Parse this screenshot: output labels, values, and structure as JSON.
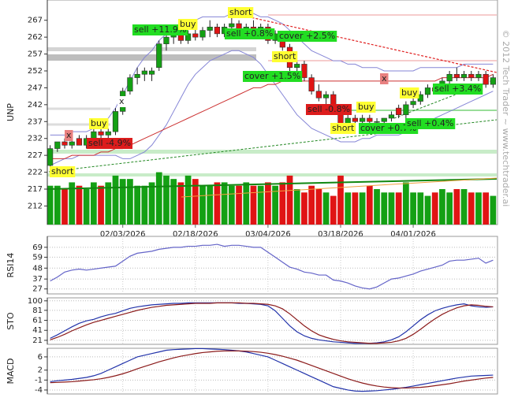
{
  "chart_data": [
    {
      "type": "candlestick",
      "y_label": "UNP",
      "categories": [
        null,
        null,
        null,
        null,
        null,
        null,
        null,
        null,
        null,
        null,
        "02/03/2026",
        null,
        null,
        null,
        null,
        null,
        null,
        null,
        null,
        null,
        "02/18/2026",
        null,
        null,
        null,
        null,
        null,
        null,
        null,
        null,
        null,
        "03/04/2026",
        null,
        null,
        null,
        null,
        null,
        null,
        null,
        null,
        null,
        "03/18/2026",
        null,
        null,
        null,
        null,
        null,
        null,
        null,
        null,
        null,
        "04/01/2026",
        null,
        null,
        null,
        null,
        null,
        null,
        null,
        null,
        null,
        null,
        null
      ],
      "open": [
        224,
        229,
        231,
        230,
        232,
        230,
        232,
        234,
        233,
        234,
        240,
        246,
        250,
        251,
        251,
        253,
        260,
        262,
        263,
        261,
        263,
        262,
        264,
        265,
        263,
        265,
        266,
        264,
        265,
        264,
        265,
        261,
        263,
        259,
        253,
        254,
        250,
        246,
        244,
        245,
        241,
        236,
        238,
        237,
        238,
        237,
        237,
        238,
        241,
        239,
        242,
        243,
        245,
        247,
        246,
        249,
        251,
        250,
        251,
        250,
        251,
        248
      ],
      "high": [
        230,
        231,
        232,
        232,
        233,
        233,
        235,
        235,
        235,
        241,
        247,
        251,
        253,
        253,
        253,
        261,
        263,
        264,
        264,
        264,
        265,
        265,
        267,
        266,
        266,
        268,
        267,
        266,
        267,
        266,
        266,
        264,
        263,
        260,
        255,
        255,
        251,
        248,
        246,
        246,
        241,
        239,
        239,
        239,
        239,
        238,
        238,
        240,
        242,
        243,
        244,
        246,
        248,
        248,
        250,
        252,
        253,
        252,
        252,
        252,
        252,
        251
      ],
      "low": [
        223,
        228,
        229,
        229,
        230,
        229,
        231,
        232,
        232,
        233,
        239,
        245,
        248,
        249,
        249,
        252,
        258,
        260,
        260,
        260,
        261,
        261,
        262,
        262,
        262,
        263,
        263,
        262,
        263,
        262,
        260,
        260,
        258,
        251,
        250,
        249,
        245,
        243,
        242,
        240,
        235,
        235,
        236,
        236,
        236,
        236,
        236,
        237,
        238,
        238,
        241,
        242,
        244,
        245,
        245,
        248,
        249,
        249,
        249,
        249,
        247,
        247
      ],
      "close": [
        229,
        231,
        230,
        231,
        230,
        232,
        234,
        233,
        234,
        240,
        246,
        250,
        251,
        252,
        252,
        260,
        262,
        263,
        261,
        263,
        262,
        264,
        265,
        263,
        265,
        266,
        264,
        265,
        264,
        265,
        261,
        263,
        259,
        253,
        254,
        250,
        246,
        244,
        245,
        241,
        236,
        238,
        237,
        238,
        237,
        237,
        238,
        239,
        239,
        242,
        243,
        245,
        247,
        246,
        249,
        251,
        250,
        251,
        250,
        251,
        248,
        250
      ],
      "volume": [
        218,
        218,
        217,
        219,
        218,
        217,
        219,
        218,
        219,
        221,
        220,
        220,
        218,
        218,
        219,
        222,
        221,
        220,
        219,
        221,
        220,
        218,
        218,
        219,
        219,
        218,
        218,
        219,
        218,
        218,
        219,
        218,
        219,
        221,
        217,
        216,
        218,
        217,
        216,
        215,
        221,
        216,
        216,
        216,
        218,
        217,
        216,
        216,
        216,
        219,
        216,
        216,
        215,
        216,
        217,
        216,
        217,
        217,
        216,
        216,
        216,
        215
      ],
      "up_color": "#14a014",
      "down_color": "#e01414",
      "overlays": [
        {
          "color": "#8585d6",
          "values": [
            233,
            233,
            233,
            234,
            234,
            234,
            235,
            236,
            238,
            241,
            245,
            249,
            253,
            256,
            258,
            261,
            263,
            264,
            265,
            266,
            267,
            268,
            268,
            268,
            268,
            269,
            269,
            269,
            269,
            268,
            268,
            267,
            266,
            264,
            262,
            260,
            258,
            257,
            256,
            255,
            255,
            254,
            254,
            253,
            253,
            253,
            252,
            252,
            252,
            252,
            252,
            253,
            253,
            253,
            253,
            253,
            253,
            254,
            254,
            254,
            254,
            254
          ]
        },
        {
          "color": "#8585d6",
          "values": [
            224,
            225,
            226,
            226,
            227,
            227,
            227,
            227,
            227,
            227,
            226,
            226,
            227,
            228,
            230,
            233,
            236,
            240,
            244,
            248,
            251,
            253,
            255,
            256,
            257,
            258,
            258,
            257,
            256,
            254,
            251,
            248,
            245,
            242,
            239,
            237,
            235,
            234,
            233,
            232,
            231,
            231,
            231,
            232,
            232,
            233,
            233,
            233,
            233,
            234,
            235,
            236,
            237,
            238,
            239,
            240,
            241,
            242,
            243,
            244,
            245,
            246
          ]
        },
        {
          "color": "#cc3030",
          "values": [
            226,
            226,
            226,
            227,
            227,
            227,
            227,
            228,
            228,
            229,
            229,
            230,
            231,
            232,
            233,
            234,
            235,
            236,
            237,
            238,
            239,
            240,
            241,
            242,
            243,
            244,
            245,
            246,
            247,
            247,
            248,
            248,
            249,
            249,
            249,
            249,
            249,
            249,
            249,
            249,
            249,
            249,
            249,
            249,
            249,
            249,
            249,
            249,
            249,
            249,
            249,
            249,
            249,
            249,
            250,
            250,
            250,
            250,
            250,
            250,
            250,
            251
          ]
        }
      ],
      "annotations": [
        {
          "text": "short",
          "color": "#ffff33"
        },
        {
          "text": "x",
          "color": "#e88080"
        },
        {
          "text": "buy",
          "color": "#ffff33"
        },
        {
          "text": "sell -4.9%",
          "color": "#dd1c1c"
        },
        {
          "text": "x",
          "color": "#ffffff"
        },
        {
          "text": "sell +11.9%",
          "color": "#22dd22"
        },
        {
          "text": "buy",
          "color": "#ffff33"
        },
        {
          "text": "short",
          "color": "#ffff33"
        },
        {
          "text": "sell +0.8%",
          "color": "#22dd22"
        },
        {
          "text": "cover +2.5%",
          "color": "#22dd22"
        },
        {
          "text": "short",
          "color": "#ffff33"
        },
        {
          "text": "cover +1.5%",
          "color": "#22dd22"
        },
        {
          "text": "x",
          "color": "#e88080"
        },
        {
          "text": "buy",
          "color": "#ffff33"
        },
        {
          "text": "sell +3.4%",
          "color": "#22dd22"
        },
        {
          "text": "buy",
          "color": "#ffff33"
        },
        {
          "text": "sell -0.8%",
          "color": "#dd1c1c"
        },
        {
          "text": "short",
          "color": "#ffff33"
        },
        {
          "text": "cover +0.7%",
          "color": "#22dd22"
        },
        {
          "text": "sell +0.4%",
          "color": "#22dd22"
        }
      ],
      "watermark": "© 2012 Tech Trader ~ www.techtrader.ai",
      "ylim": [
        206.5,
        273
      ],
      "yticks": [
        212,
        217,
        222,
        227,
        232,
        237,
        242,
        247,
        252,
        257,
        262,
        267
      ]
    },
    {
      "type": "line",
      "y_label": "RSI14",
      "ylim": [
        22,
        80
      ],
      "yticks": [
        27,
        37,
        48,
        59,
        69
      ],
      "series": [
        {
          "color": "#6464c8",
          "values": [
            35,
            39,
            44,
            46,
            47,
            46,
            47,
            48,
            49,
            50,
            55,
            60,
            63,
            64,
            65,
            67,
            68,
            69,
            69,
            70,
            70,
            71,
            71,
            72,
            70,
            71,
            71,
            70,
            69,
            69,
            64,
            59,
            54,
            49,
            47,
            44,
            43,
            41,
            41,
            36,
            35,
            33,
            30,
            28,
            27,
            29,
            33,
            37,
            38,
            40,
            42,
            45,
            47,
            49,
            51,
            55,
            56,
            56,
            57,
            58,
            53,
            56
          ]
        }
      ]
    },
    {
      "type": "line",
      "y_label": "STO",
      "ylim": [
        13,
        106
      ],
      "yticks": [
        21,
        41,
        61,
        81,
        100
      ],
      "series": [
        {
          "color": "#2233aa",
          "values": [
            25,
            32,
            40,
            48,
            55,
            60,
            63,
            68,
            72,
            75,
            80,
            85,
            88,
            90,
            92,
            93,
            94,
            95,
            95,
            96,
            96,
            96,
            96,
            96,
            96,
            96,
            95,
            95,
            94,
            93,
            90,
            80,
            65,
            50,
            38,
            30,
            25,
            22,
            20,
            18,
            17,
            16,
            15,
            15,
            15,
            16,
            18,
            22,
            28,
            38,
            50,
            62,
            72,
            80,
            85,
            89,
            92,
            94,
            90,
            88,
            87,
            88
          ]
        },
        {
          "color": "#8b1a1a",
          "values": [
            22,
            27,
            33,
            40,
            46,
            52,
            57,
            61,
            65,
            69,
            73,
            77,
            81,
            84,
            87,
            89,
            91,
            92,
            93,
            94,
            95,
            95,
            95,
            96,
            96,
            96,
            96,
            95,
            95,
            94,
            93,
            90,
            84,
            74,
            62,
            50,
            40,
            32,
            27,
            23,
            20,
            18,
            17,
            16,
            15,
            15,
            16,
            17,
            20,
            25,
            33,
            43,
            54,
            64,
            73,
            80,
            86,
            90,
            92,
            91,
            89,
            88
          ]
        }
      ]
    },
    {
      "type": "line",
      "y_label": "MACD",
      "ylim": [
        -5.2,
        8.6
      ],
      "yticks": [
        -4,
        -1,
        2,
        6
      ],
      "series": [
        {
          "color": "#2233aa",
          "values": [
            -1.5,
            -1.2,
            -1,
            -0.8,
            -0.5,
            -0.2,
            0.3,
            1,
            2,
            3,
            4,
            5,
            6,
            6.5,
            7,
            7.5,
            8,
            8.2,
            8.3,
            8.4,
            8.5,
            8.5,
            8.4,
            8.3,
            8.2,
            8,
            7.8,
            7.5,
            7,
            6.5,
            6,
            5,
            4,
            3,
            2,
            1,
            0,
            -1,
            -2,
            -3,
            -3.5,
            -4,
            -4.3,
            -4.4,
            -4.3,
            -4.2,
            -4,
            -3.8,
            -3.5,
            -3.2,
            -2.8,
            -2.4,
            -2,
            -1.6,
            -1.2,
            -0.8,
            -0.4,
            -0.1,
            0.2,
            0.3,
            0.4,
            0.5
          ]
        },
        {
          "color": "#8b1a1a",
          "values": [
            -1.8,
            -1.7,
            -1.6,
            -1.5,
            -1.3,
            -1.1,
            -0.9,
            -0.6,
            -0.2,
            0.3,
            0.9,
            1.6,
            2.4,
            3.1,
            3.8,
            4.5,
            5.1,
            5.7,
            6.2,
            6.6,
            7,
            7.3,
            7.5,
            7.7,
            7.8,
            7.8,
            7.8,
            7.7,
            7.6,
            7.4,
            7.1,
            6.7,
            6.2,
            5.6,
            5,
            4.2,
            3.4,
            2.6,
            1.8,
            1,
            0.2,
            -0.6,
            -1.3,
            -1.9,
            -2.4,
            -2.8,
            -3.1,
            -3.3,
            -3.4,
            -3.4,
            -3.3,
            -3.2,
            -3,
            -2.7,
            -2.4,
            -2.1,
            -1.7,
            -1.3,
            -1,
            -0.7,
            -0.4,
            -0.2
          ]
        }
      ]
    }
  ]
}
